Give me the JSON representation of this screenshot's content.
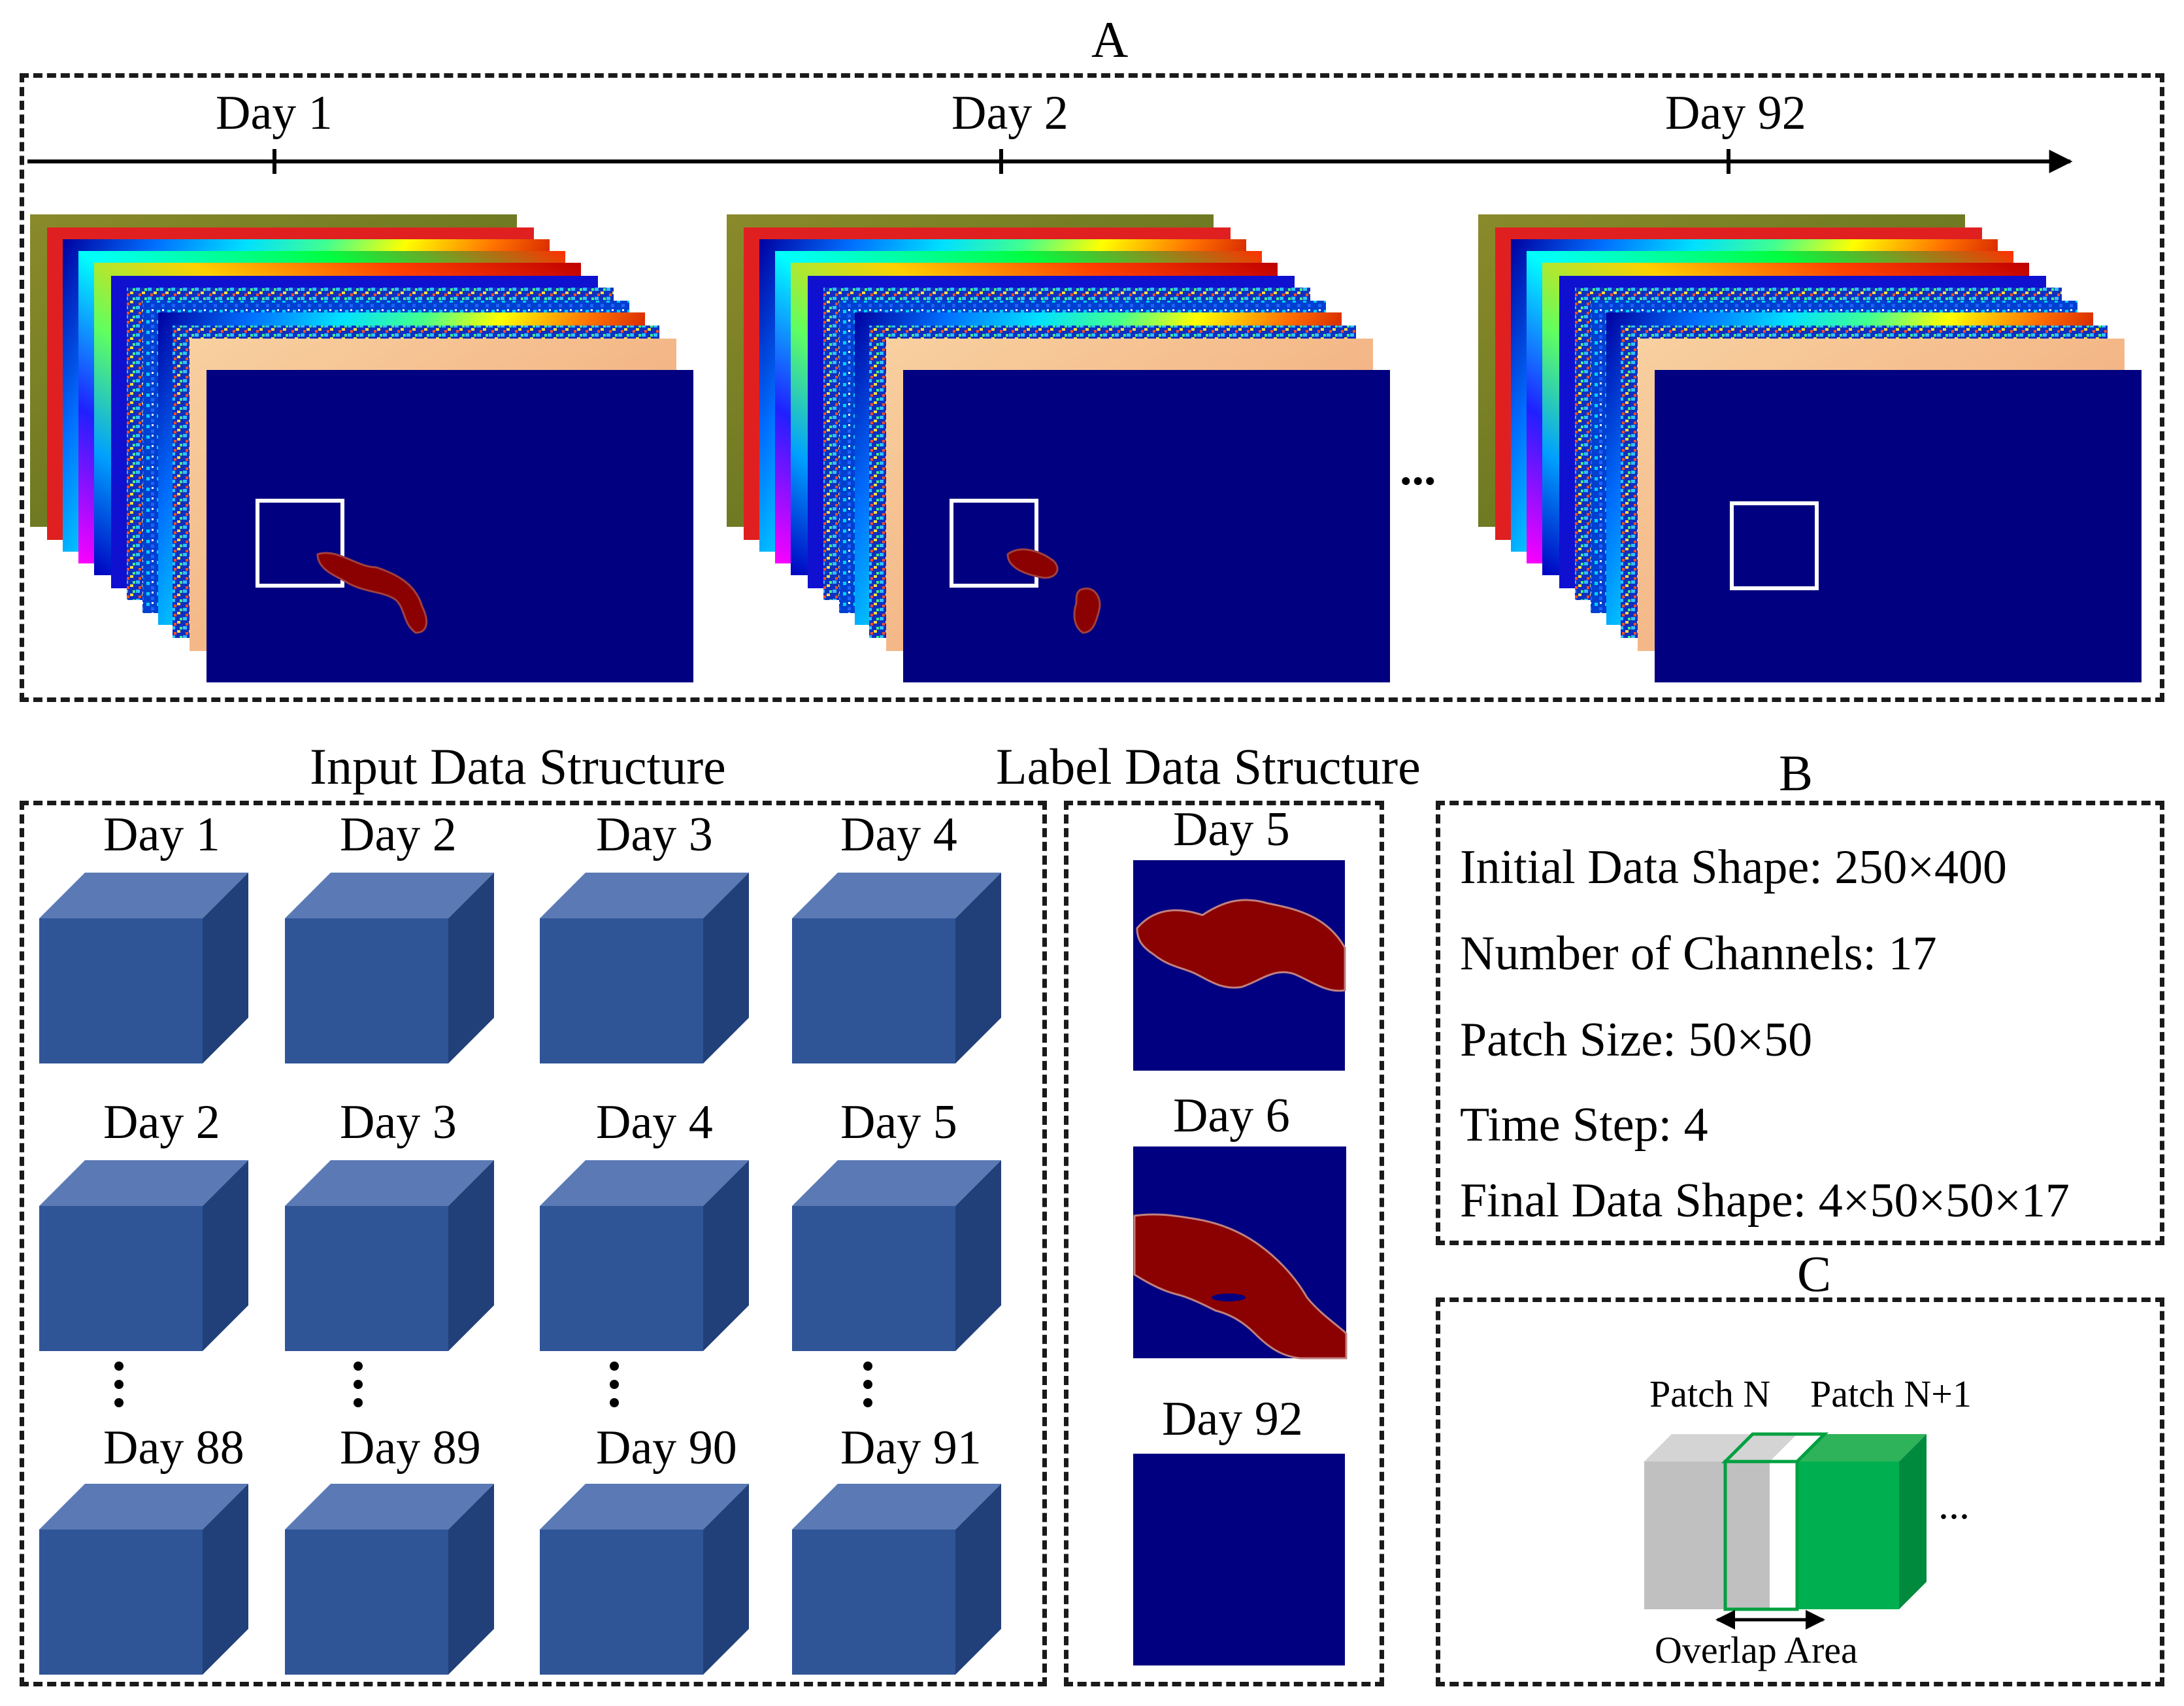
{
  "panel_a": {
    "title": "A",
    "timeline_days": [
      "Day 1",
      "Day 2",
      "Day 92"
    ],
    "ellipsis": "..."
  },
  "input_structure": {
    "title": "Input Data Structure",
    "rows": [
      [
        "Day 1",
        "Day 2",
        "Day 3",
        "Day 4"
      ],
      [
        "Day 2",
        "Day 3",
        "Day 4",
        "Day 5"
      ],
      [
        "Day 88",
        "Day 89",
        "Day 90",
        "Day 91"
      ]
    ],
    "cube_color": "#2f5597"
  },
  "label_structure": {
    "title": "Label Data Structure",
    "days": [
      "Day 5",
      "Day 6",
      "Day 92"
    ],
    "background_color": "#000080",
    "fire_color": "#8b0000"
  },
  "panel_b": {
    "title": "B",
    "items": [
      "Initial Data Shape: 250×400",
      "Number of Channels: 17",
      "Patch Size: 50×50",
      "Time Step: 4",
      "Final Data Shape: 4×50×50×17"
    ]
  },
  "panel_c": {
    "title": "C",
    "patch_n": "Patch N",
    "patch_n1": "Patch N+1",
    "overlap": "Overlap Area",
    "ellipsis": "..."
  }
}
